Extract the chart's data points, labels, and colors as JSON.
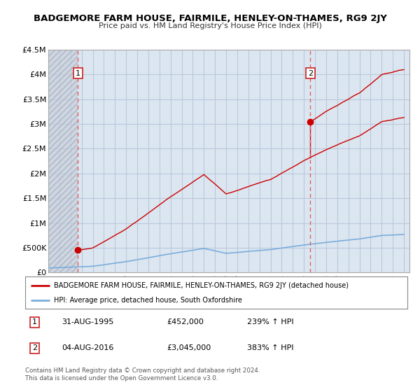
{
  "title": "BADGEMORE FARM HOUSE, FAIRMILE, HENLEY-ON-THAMES, RG9 2JY",
  "subtitle": "Price paid vs. HM Land Registry's House Price Index (HPI)",
  "ylim": [
    0,
    4500000
  ],
  "yticks": [
    0,
    500000,
    1000000,
    1500000,
    2000000,
    2500000,
    3000000,
    3500000,
    4000000,
    4500000
  ],
  "ytick_labels": [
    "£0",
    "£500K",
    "£1M",
    "£1.5M",
    "£2M",
    "£2.5M",
    "£3M",
    "£3.5M",
    "£4M",
    "£4.5M"
  ],
  "xlim_start": 1993.0,
  "xlim_end": 2025.5,
  "sale1_x": 1995.667,
  "sale1_y": 452000,
  "sale1_label": "1",
  "sale1_date": "31-AUG-1995",
  "sale1_price": "£452,000",
  "sale1_hpi": "239% ↑ HPI",
  "sale2_x": 2016.583,
  "sale2_y": 3045000,
  "sale2_label": "2",
  "sale2_date": "04-AUG-2016",
  "sale2_price": "£3,045,000",
  "sale2_hpi": "383% ↑ HPI",
  "bg_color": "#ffffff",
  "plot_bg_color": "#dce6f0",
  "grid_color": "#b8c8dc",
  "hatch_color": "#b0b8c8",
  "line_color_red": "#cc0000",
  "line_color_blue": "#7aaddc",
  "dashed_line_color": "#e06060",
  "marker_color": "#cc0000",
  "legend_label_red": "BADGEMORE FARM HOUSE, FAIRMILE, HENLEY-ON-THAMES, RG9 2JY (detached house)",
  "legend_label_blue": "HPI: Average price, detached house, South Oxfordshire",
  "footer": "Contains HM Land Registry data © Crown copyright and database right 2024.\nThis data is licensed under the Open Government Licence v3.0.",
  "hpi_base_y": 133000,
  "sale1_base": 452000,
  "sale2_base": 3045000,
  "sale1_hpi_index": 1.0,
  "sale2_hpi_index": 1.0
}
